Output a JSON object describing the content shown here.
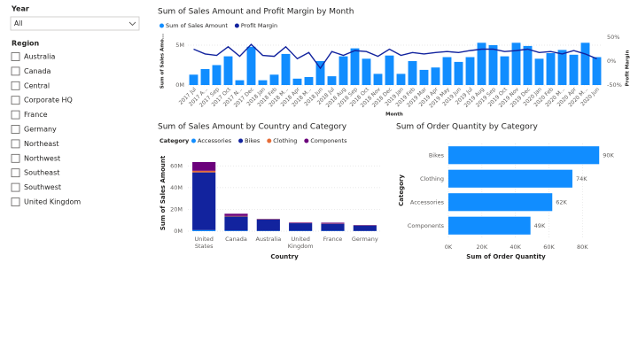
{
  "slicers": {
    "year": {
      "title": "Year",
      "value": "All"
    },
    "region": {
      "title": "Region",
      "options": [
        "Australia",
        "Canada",
        "Central",
        "Corporate HQ",
        "France",
        "Germany",
        "Northeast",
        "Northwest",
        "Southeast",
        "Southwest",
        "United Kingdom"
      ]
    }
  },
  "chart_data": [
    {
      "type": "bar_line",
      "title": "Sum of Sales Amount and Profit Margin by Month",
      "categories": [
        "2017 Jul",
        "2017 A...",
        "2017 Sep",
        "2017 Oct",
        "2017 N...",
        "2017 Dec",
        "2018 Jan",
        "2018 Feb",
        "2018 M...",
        "2018 Apr",
        "2018 M...",
        "2018 Jun",
        "2018 Jul",
        "2018 Aug",
        "2018 Sep",
        "2018 Oct",
        "2018 Nov",
        "2018 Dec",
        "2019 Jan",
        "2019 Feb",
        "2019 Mar",
        "2019 Apr",
        "2019 May",
        "2019 Jun",
        "2019 Jul",
        "2019 Aug",
        "2019 Sep",
        "2019 Oct",
        "2019 Nov",
        "2019 Dec",
        "2020 Jan",
        "2020 Feb",
        "2020 M...",
        "2020 Apr",
        "2020 M...",
        "2020 Jun"
      ],
      "series": [
        {
          "name": "Sum of Sales Amount",
          "color": "#118dff",
          "values": [
            1300000,
            2000000,
            2500000,
            3600000,
            600000,
            4800000,
            600000,
            1300000,
            3900000,
            800000,
            1000000,
            3000000,
            1100000,
            3600000,
            4600000,
            3300000,
            1400000,
            3700000,
            1400000,
            3000000,
            1900000,
            2200000,
            3500000,
            2900000,
            3500000,
            5300000,
            5000000,
            3600000,
            5300000,
            4900000,
            3300000,
            4000000,
            4400000,
            3800000,
            5300000,
            3500000
          ]
        },
        {
          "name": "Profit Margin",
          "color": "#12239e",
          "axis": "y2",
          "values": [
            25,
            15,
            12,
            30,
            10,
            35,
            12,
            10,
            30,
            5,
            18,
            -15,
            20,
            12,
            22,
            20,
            10,
            25,
            12,
            18,
            15,
            18,
            20,
            18,
            22,
            25,
            25,
            20,
            22,
            25,
            18,
            20,
            15,
            22,
            15,
            5
          ]
        }
      ],
      "ylabel": "Sum of Sales Amo...",
      "y2label": "Profit Margin",
      "xlabel": "Month",
      "ylim": [
        0,
        6000000
      ],
      "yticks": [
        {
          "value": 0,
          "label": "0M"
        },
        {
          "value": 5000000,
          "label": "5M"
        }
      ],
      "y2lim": [
        -50,
        50
      ],
      "y2ticks": [
        {
          "value": -50,
          "label": "-50%"
        },
        {
          "value": 0,
          "label": "0%"
        },
        {
          "value": 50,
          "label": "50%"
        }
      ],
      "grid": true,
      "legend": "top-left"
    },
    {
      "type": "stacked_bar",
      "title": "Sum of Sales Amount by Country and Category",
      "legend_title": "Category",
      "categories": [
        "United States",
        "Canada",
        "Australia",
        "United Kingdom",
        "France",
        "Germany"
      ],
      "series": [
        {
          "name": "Accessories",
          "color": "#118dff",
          "values": [
            1000000,
            500000,
            300000,
            300000,
            300000,
            200000
          ]
        },
        {
          "name": "Bikes",
          "color": "#12239e",
          "values": [
            53000000,
            13000000,
            10500000,
            7000000,
            6500000,
            5000000
          ]
        },
        {
          "name": "Clothing",
          "color": "#e66c37",
          "values": [
            1500000,
            500000,
            200000,
            200000,
            200000,
            100000
          ]
        },
        {
          "name": "Components",
          "color": "#6b007b",
          "values": [
            8000000,
            2000000,
            300000,
            500000,
            800000,
            300000
          ]
        }
      ],
      "ylabel": "Sum of Sales Amount",
      "xlabel": "Country",
      "ylim": [
        0,
        70000000
      ],
      "yticks": [
        {
          "value": 0,
          "label": "0M"
        },
        {
          "value": 20000000,
          "label": "20M"
        },
        {
          "value": 40000000,
          "label": "40M"
        },
        {
          "value": 60000000,
          "label": "60M"
        }
      ],
      "grid": true,
      "legend": "top-left"
    },
    {
      "type": "hbar",
      "title": "Sum of Order Quantity by Category",
      "categories": [
        "Bikes",
        "Clothing",
        "Accessories",
        "Components"
      ],
      "values": [
        90000,
        74000,
        62000,
        49000
      ],
      "value_labels": [
        "90K",
        "74K",
        "62K",
        "49K"
      ],
      "color": "#118dff",
      "ylabel": "Category",
      "xlabel": "Sum of Order Quantity",
      "xlim": [
        0,
        92000
      ],
      "xticks": [
        {
          "value": 0,
          "label": "0K"
        },
        {
          "value": 20000,
          "label": "20K"
        },
        {
          "value": 40000,
          "label": "40K"
        },
        {
          "value": 60000,
          "label": "60K"
        },
        {
          "value": 80000,
          "label": "80K"
        }
      ],
      "grid": true
    }
  ]
}
